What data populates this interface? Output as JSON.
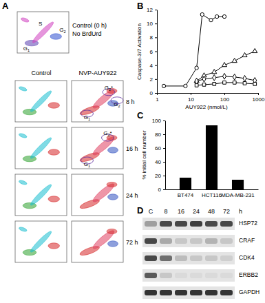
{
  "chart_data": [
    {
      "type": "line",
      "title": "B",
      "x_label": "AUY922 (nmol/L)",
      "y_label": "Caspase-3/7 Activation",
      "log": "x",
      "xlim": [
        1,
        1000
      ],
      "xticks": [
        1,
        10,
        100,
        1000
      ],
      "ylim": [
        0,
        12
      ],
      "yticks": [
        0,
        2,
        4,
        6,
        8,
        10,
        12
      ],
      "series": [
        {
          "marker": "circle",
          "color": "#000000",
          "x": [
            1.6,
            7,
            15,
            22,
            40,
            60,
            100
          ],
          "values": [
            1,
            1,
            3.6,
            11.3,
            10.5,
            11,
            11
          ]
        },
        {
          "marker": "triangle",
          "color": "#000000",
          "x": [
            15,
            25,
            50,
            100,
            200,
            400,
            800
          ],
          "values": [
            1.7,
            2.5,
            3,
            4,
            4.6,
            5.4,
            6
          ]
        },
        {
          "marker": "diamond",
          "color": "#000000",
          "x": [
            15,
            25,
            50,
            100,
            200,
            400,
            800
          ],
          "values": [
            1.7,
            2,
            2.2,
            2.4,
            2.3,
            2.1,
            1.8
          ]
        },
        {
          "marker": "square",
          "color": "#000000",
          "x": [
            15,
            25,
            50,
            100,
            200,
            400,
            800
          ],
          "values": [
            1.1,
            1.2,
            1.3,
            1.5,
            1.5,
            1.4,
            1.3
          ]
        }
      ]
    },
    {
      "type": "bar",
      "title": "C",
      "y_label": "% initial cell number",
      "color": "#000000",
      "categories": [
        "BT474",
        "HCT116",
        "MDA-MB-231"
      ],
      "values": [
        17,
        93,
        14
      ],
      "ylim": [
        0,
        100
      ],
      "yticks": [
        0,
        20,
        40,
        60,
        80,
        100
      ]
    }
  ],
  "flow": {
    "panel": "A",
    "top": {
      "labels": [
        "Control (0 h)",
        "No BrdUrd"
      ],
      "gates": [
        "G1",
        "S",
        "G2"
      ]
    },
    "columns": [
      "Control",
      "NVP-AUY922"
    ],
    "rows": [
      {
        "time": "8 h",
        "gates": [
          "G2*",
          "G2",
          "G1"
        ]
      },
      {
        "time": "16 h",
        "gates": [
          "G2*",
          "G1"
        ]
      },
      {
        "time": "24 h"
      },
      {
        "time": "72 h"
      }
    ]
  },
  "blot": {
    "panel": "D",
    "lanes": [
      "C",
      "8",
      "16",
      "24",
      "48",
      "72"
    ],
    "unit": "h",
    "proteins": [
      {
        "name": "HSP72",
        "bands": [
          0.35,
          0.8,
          0.8,
          0.85,
          0.8,
          0.8
        ]
      },
      {
        "name": "CRAF",
        "bands": [
          0.8,
          0.3,
          0.15,
          0.15,
          0.25,
          0.15
        ]
      },
      {
        "name": "CDK4",
        "bands": [
          0.8,
          0.6,
          0.2,
          0.15,
          0.15,
          0.1
        ]
      },
      {
        "name": "ERBB2",
        "bands": [
          0.7,
          0.15,
          0.05,
          0.05,
          0.05,
          0.05
        ]
      },
      {
        "name": "GAPDH",
        "bands": [
          0.9,
          0.9,
          0.9,
          0.9,
          0.9,
          0.9
        ]
      }
    ]
  }
}
